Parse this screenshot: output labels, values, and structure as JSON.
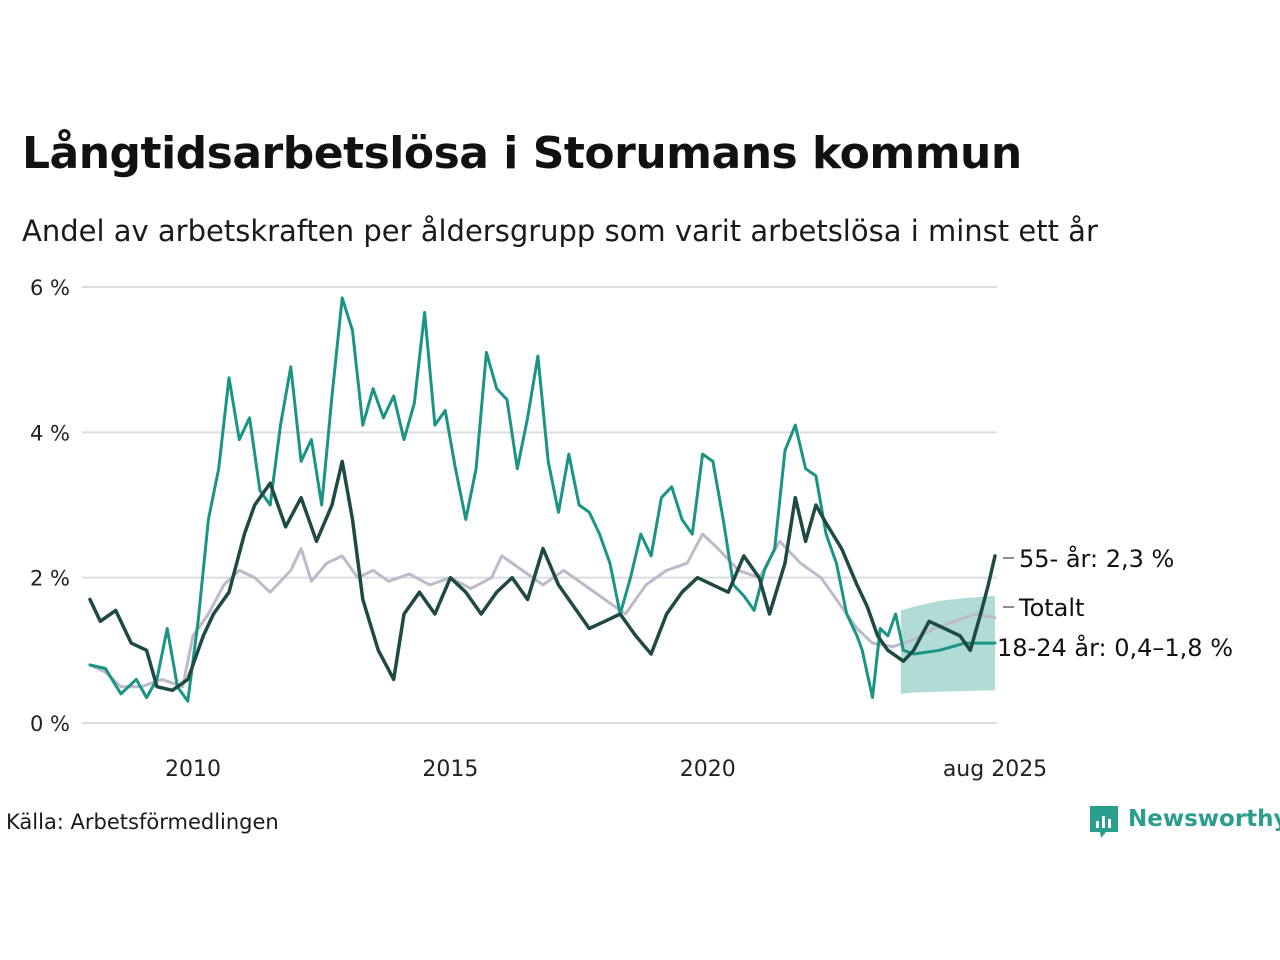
{
  "header": {
    "title": "Långtidsarbetslösa i Storumans kommun",
    "subtitle": "Andel av arbetskraften per åldersgrupp som varit arbetslösa i minst ett år"
  },
  "footer": {
    "source": "Källa: Arbetsförmedlingen",
    "brand": "Newsworthy"
  },
  "colors": {
    "youth": "#1a9485",
    "older": "#1f4a44",
    "total": "#bdbacb",
    "band": "#a8d8d0",
    "grid": "#dddddd"
  },
  "chart_data": {
    "type": "line",
    "ylim": [
      0,
      6
    ],
    "xlim": [
      2008.0,
      2025.58
    ],
    "y_ticks": [
      {
        "value": 0,
        "label": "0 %"
      },
      {
        "value": 2,
        "label": "2 %"
      },
      {
        "value": 4,
        "label": "4 %"
      },
      {
        "value": 6,
        "label": "6 %"
      }
    ],
    "x_ticks": [
      {
        "value": 2010,
        "label": "2010"
      },
      {
        "value": 2015,
        "label": "2015"
      },
      {
        "value": 2020,
        "label": "2020"
      },
      {
        "value": 2025.58,
        "label": "aug 2025"
      }
    ],
    "grid": true,
    "series": [
      {
        "id": "total",
        "name": "Totalt",
        "label": "Totalt",
        "points": [
          [
            2008.0,
            0.8
          ],
          [
            2008.3,
            0.7
          ],
          [
            2008.6,
            0.5
          ],
          [
            2009.0,
            0.5
          ],
          [
            2009.4,
            0.6
          ],
          [
            2009.8,
            0.5
          ],
          [
            2010.0,
            1.2
          ],
          [
            2010.3,
            1.5
          ],
          [
            2010.6,
            1.9
          ],
          [
            2010.9,
            2.1
          ],
          [
            2011.2,
            2.0
          ],
          [
            2011.5,
            1.8
          ],
          [
            2011.9,
            2.1
          ],
          [
            2012.1,
            2.4
          ],
          [
            2012.3,
            1.95
          ],
          [
            2012.6,
            2.2
          ],
          [
            2012.9,
            2.3
          ],
          [
            2013.2,
            2.0
          ],
          [
            2013.5,
            2.1
          ],
          [
            2013.8,
            1.95
          ],
          [
            2014.2,
            2.05
          ],
          [
            2014.6,
            1.9
          ],
          [
            2015.0,
            2.0
          ],
          [
            2015.4,
            1.85
          ],
          [
            2015.8,
            2.0
          ],
          [
            2016.0,
            2.3
          ],
          [
            2016.4,
            2.1
          ],
          [
            2016.8,
            1.9
          ],
          [
            2017.2,
            2.1
          ],
          [
            2017.6,
            1.9
          ],
          [
            2018.0,
            1.7
          ],
          [
            2018.4,
            1.5
          ],
          [
            2018.8,
            1.9
          ],
          [
            2019.2,
            2.1
          ],
          [
            2019.6,
            2.2
          ],
          [
            2019.9,
            2.6
          ],
          [
            2020.2,
            2.4
          ],
          [
            2020.6,
            2.1
          ],
          [
            2021.0,
            2.0
          ],
          [
            2021.4,
            2.5
          ],
          [
            2021.8,
            2.2
          ],
          [
            2022.2,
            2.0
          ],
          [
            2022.6,
            1.6
          ],
          [
            2022.9,
            1.3
          ],
          [
            2023.2,
            1.1
          ],
          [
            2023.6,
            1.05
          ],
          [
            2024.0,
            1.15
          ],
          [
            2024.4,
            1.3
          ],
          [
            2024.8,
            1.4
          ],
          [
            2025.2,
            1.5
          ],
          [
            2025.58,
            1.45
          ]
        ]
      },
      {
        "id": "older",
        "name": "55- år",
        "label": "55- år: 2,3 %",
        "points": [
          [
            2008.0,
            1.7
          ],
          [
            2008.2,
            1.4
          ],
          [
            2008.5,
            1.55
          ],
          [
            2008.8,
            1.1
          ],
          [
            2009.1,
            1.0
          ],
          [
            2009.3,
            0.5
          ],
          [
            2009.6,
            0.45
          ],
          [
            2009.9,
            0.6
          ],
          [
            2010.2,
            1.2
          ],
          [
            2010.4,
            1.5
          ],
          [
            2010.7,
            1.8
          ],
          [
            2011.0,
            2.6
          ],
          [
            2011.2,
            3.0
          ],
          [
            2011.5,
            3.3
          ],
          [
            2011.8,
            2.7
          ],
          [
            2012.1,
            3.1
          ],
          [
            2012.4,
            2.5
          ],
          [
            2012.7,
            3.0
          ],
          [
            2012.9,
            3.6
          ],
          [
            2013.1,
            2.8
          ],
          [
            2013.3,
            1.7
          ],
          [
            2013.6,
            1.0
          ],
          [
            2013.9,
            0.6
          ],
          [
            2014.1,
            1.5
          ],
          [
            2014.4,
            1.8
          ],
          [
            2014.7,
            1.5
          ],
          [
            2015.0,
            2.0
          ],
          [
            2015.3,
            1.8
          ],
          [
            2015.6,
            1.5
          ],
          [
            2015.9,
            1.8
          ],
          [
            2016.2,
            2.0
          ],
          [
            2016.5,
            1.7
          ],
          [
            2016.8,
            2.4
          ],
          [
            2017.1,
            1.9
          ],
          [
            2017.4,
            1.6
          ],
          [
            2017.7,
            1.3
          ],
          [
            2018.0,
            1.4
          ],
          [
            2018.3,
            1.5
          ],
          [
            2018.6,
            1.2
          ],
          [
            2018.9,
            0.95
          ],
          [
            2019.2,
            1.5
          ],
          [
            2019.5,
            1.8
          ],
          [
            2019.8,
            2.0
          ],
          [
            2020.1,
            1.9
          ],
          [
            2020.4,
            1.8
          ],
          [
            2020.7,
            2.3
          ],
          [
            2021.0,
            2.0
          ],
          [
            2021.2,
            1.5
          ],
          [
            2021.5,
            2.2
          ],
          [
            2021.7,
            3.1
          ],
          [
            2021.9,
            2.5
          ],
          [
            2022.1,
            3.0
          ],
          [
            2022.3,
            2.75
          ],
          [
            2022.6,
            2.4
          ],
          [
            2022.9,
            1.9
          ],
          [
            2023.1,
            1.6
          ],
          [
            2023.3,
            1.2
          ],
          [
            2023.5,
            1.0
          ],
          [
            2023.8,
            0.85
          ],
          [
            2024.0,
            1.0
          ],
          [
            2024.3,
            1.4
          ],
          [
            2024.6,
            1.3
          ],
          [
            2024.9,
            1.2
          ],
          [
            2025.1,
            1.0
          ],
          [
            2025.3,
            1.5
          ],
          [
            2025.45,
            1.9
          ],
          [
            2025.58,
            2.3
          ]
        ]
      },
      {
        "id": "youth",
        "name": "18-24 år",
        "label": "18-24 år: 0,4–1,8 %",
        "points": [
          [
            2008.0,
            0.8
          ],
          [
            2008.3,
            0.75
          ],
          [
            2008.6,
            0.4
          ],
          [
            2008.9,
            0.6
          ],
          [
            2009.1,
            0.35
          ],
          [
            2009.3,
            0.6
          ],
          [
            2009.5,
            1.3
          ],
          [
            2009.7,
            0.5
          ],
          [
            2009.9,
            0.3
          ],
          [
            2010.1,
            1.4
          ],
          [
            2010.3,
            2.8
          ],
          [
            2010.5,
            3.5
          ],
          [
            2010.7,
            4.75
          ],
          [
            2010.9,
            3.9
          ],
          [
            2011.1,
            4.2
          ],
          [
            2011.3,
            3.2
          ],
          [
            2011.5,
            3.0
          ],
          [
            2011.7,
            4.1
          ],
          [
            2011.9,
            4.9
          ],
          [
            2012.1,
            3.6
          ],
          [
            2012.3,
            3.9
          ],
          [
            2012.5,
            3.0
          ],
          [
            2012.7,
            4.5
          ],
          [
            2012.9,
            5.85
          ],
          [
            2013.1,
            5.4
          ],
          [
            2013.3,
            4.1
          ],
          [
            2013.5,
            4.6
          ],
          [
            2013.7,
            4.2
          ],
          [
            2013.9,
            4.5
          ],
          [
            2014.1,
            3.9
          ],
          [
            2014.3,
            4.4
          ],
          [
            2014.5,
            5.65
          ],
          [
            2014.7,
            4.1
          ],
          [
            2014.9,
            4.3
          ],
          [
            2015.1,
            3.5
          ],
          [
            2015.3,
            2.8
          ],
          [
            2015.5,
            3.5
          ],
          [
            2015.7,
            5.1
          ],
          [
            2015.9,
            4.6
          ],
          [
            2016.1,
            4.45
          ],
          [
            2016.3,
            3.5
          ],
          [
            2016.5,
            4.2
          ],
          [
            2016.7,
            5.05
          ],
          [
            2016.9,
            3.6
          ],
          [
            2017.1,
            2.9
          ],
          [
            2017.3,
            3.7
          ],
          [
            2017.5,
            3.0
          ],
          [
            2017.7,
            2.9
          ],
          [
            2017.9,
            2.6
          ],
          [
            2018.1,
            2.2
          ],
          [
            2018.3,
            1.5
          ],
          [
            2018.5,
            2.0
          ],
          [
            2018.7,
            2.6
          ],
          [
            2018.9,
            2.3
          ],
          [
            2019.1,
            3.1
          ],
          [
            2019.3,
            3.25
          ],
          [
            2019.5,
            2.8
          ],
          [
            2019.7,
            2.6
          ],
          [
            2019.9,
            3.7
          ],
          [
            2020.1,
            3.6
          ],
          [
            2020.3,
            2.8
          ],
          [
            2020.5,
            1.9
          ],
          [
            2020.7,
            1.75
          ],
          [
            2020.9,
            1.55
          ],
          [
            2021.1,
            2.1
          ],
          [
            2021.3,
            2.4
          ],
          [
            2021.5,
            3.75
          ],
          [
            2021.7,
            4.1
          ],
          [
            2021.9,
            3.5
          ],
          [
            2022.1,
            3.4
          ],
          [
            2022.3,
            2.6
          ],
          [
            2022.5,
            2.2
          ],
          [
            2022.7,
            1.5
          ],
          [
            2022.9,
            1.2
          ],
          [
            2023.0,
            1.0
          ],
          [
            2023.2,
            0.35
          ],
          [
            2023.35,
            1.3
          ],
          [
            2023.5,
            1.2
          ],
          [
            2023.65,
            1.5
          ],
          [
            2023.8,
            1.0
          ],
          [
            2024.0,
            0.95
          ],
          [
            2024.5,
            1.0
          ],
          [
            2025.0,
            1.1
          ],
          [
            2025.58,
            1.1
          ]
        ],
        "band": {
          "x": [
            2023.75,
            2024.0,
            2024.5,
            2025.0,
            2025.58
          ],
          "lower": [
            0.4,
            0.42,
            0.43,
            0.44,
            0.45
          ],
          "upper": [
            1.55,
            1.6,
            1.68,
            1.72,
            1.75
          ]
        }
      }
    ]
  }
}
